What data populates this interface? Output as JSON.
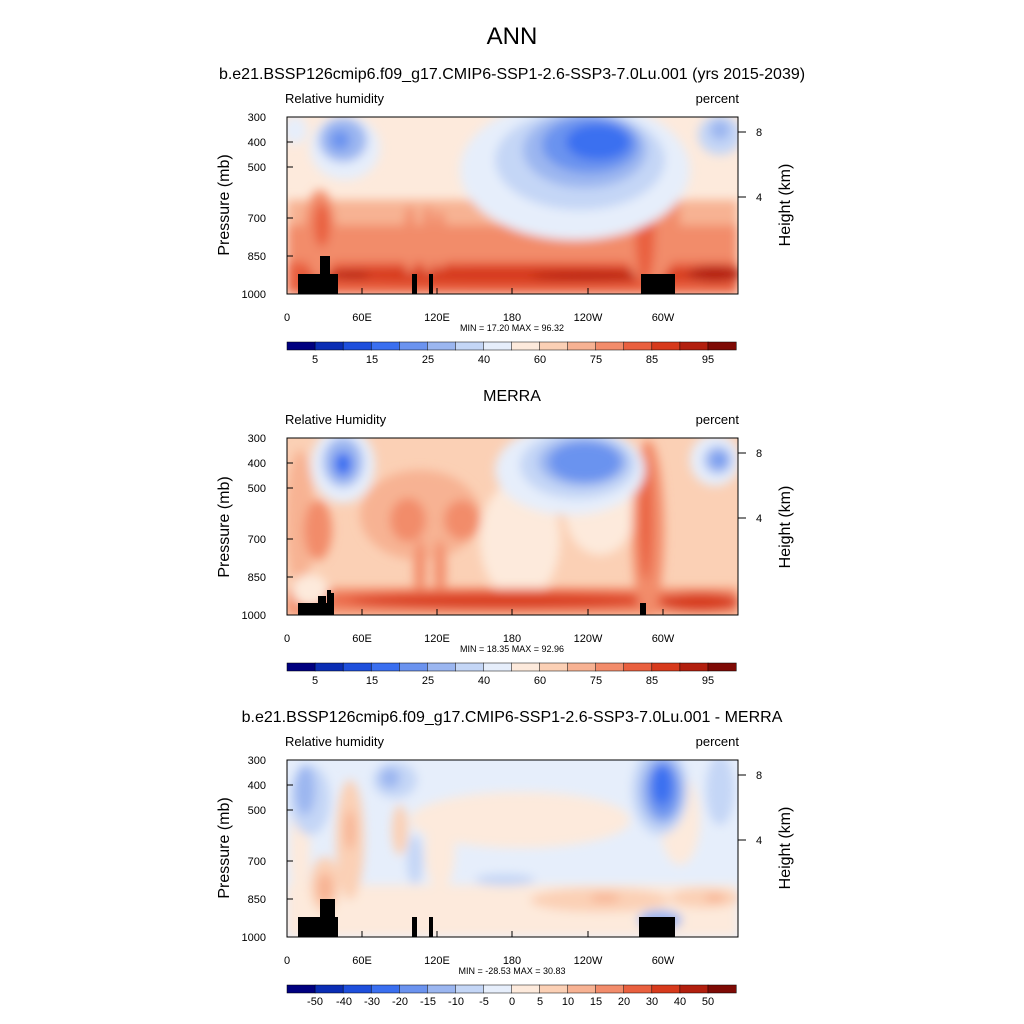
{
  "figure": {
    "title": "ANN",
    "colors_rh": [
      "#00007f",
      "#0a2db4",
      "#1e4fdc",
      "#3a6ff0",
      "#6b93ef",
      "#9bb6f0",
      "#c4d6f6",
      "#e6eefb",
      "#fdeadc",
      "#fbd0b5",
      "#f7b293",
      "#f28c6b",
      "#e9603f",
      "#d73a1c",
      "#b21f0e",
      "#7e0a05"
    ],
    "colors_diff": [
      "#00007f",
      "#0a2db4",
      "#1e4fdc",
      "#3a6ff0",
      "#6b93ef",
      "#9bb6f0",
      "#c4d6f6",
      "#e6eefb",
      "#fdeadc",
      "#fbd0b5",
      "#f7b293",
      "#f28c6b",
      "#e9603f",
      "#d73a1c",
      "#b21f0e",
      "#7e0a05"
    ]
  },
  "chart_data": [
    {
      "type": "heatmap",
      "title": "b.e21.BSSP126cmip6.f09_g17.CMIP6-SSP1-2.6-SSP3-7.0Lu.001 (yrs 2015-2039)",
      "left_label": "Relative humidity",
      "right_label": "percent",
      "ylabel": "Pressure (mb)",
      "y2label": "Height (km)",
      "yticks": [
        "300",
        "400",
        "500",
        "700",
        "850",
        "1000"
      ],
      "y2ticks": [
        "8",
        "4"
      ],
      "xticks": [
        "0",
        "60E",
        "120E",
        "180",
        "120W",
        "60W"
      ],
      "stats": "MIN =  17.20  MAX =  96.32",
      "colorbar_labels": [
        "5",
        "15",
        "25",
        "40",
        "60",
        "75",
        "85",
        "95"
      ],
      "ylim": [
        1000,
        300
      ],
      "xlim": [
        0,
        360
      ]
    },
    {
      "type": "heatmap",
      "title": "MERRA",
      "left_label": "Relative Humidity",
      "right_label": "percent",
      "ylabel": "Pressure (mb)",
      "y2label": "Height (km)",
      "yticks": [
        "300",
        "400",
        "500",
        "700",
        "850",
        "1000"
      ],
      "y2ticks": [
        "8",
        "4"
      ],
      "xticks": [
        "0",
        "60E",
        "120E",
        "180",
        "120W",
        "60W"
      ],
      "stats": "MIN =  18.35  MAX =  92.96",
      "colorbar_labels": [
        "5",
        "15",
        "25",
        "40",
        "60",
        "75",
        "85",
        "95"
      ],
      "ylim": [
        1000,
        300
      ],
      "xlim": [
        0,
        360
      ]
    },
    {
      "type": "heatmap",
      "title": "b.e21.BSSP126cmip6.f09_g17.CMIP6-SSP1-2.6-SSP3-7.0Lu.001 - MERRA",
      "left_label": "Relative humidity",
      "right_label": "percent",
      "ylabel": "Pressure (mb)",
      "y2label": "Height (km)",
      "yticks": [
        "300",
        "400",
        "500",
        "700",
        "850",
        "1000"
      ],
      "y2ticks": [
        "8",
        "4"
      ],
      "xticks": [
        "0",
        "60E",
        "120E",
        "180",
        "120W",
        "60W"
      ],
      "stats": "MIN = -28.53  MAX =  30.83",
      "colorbar_labels": [
        "-50",
        "-40",
        "-30",
        "-20",
        "-15",
        "-10",
        "-5",
        "0",
        "5",
        "10",
        "15",
        "20",
        "30",
        "40",
        "50"
      ],
      "ylim": [
        1000,
        300
      ],
      "xlim": [
        0,
        360
      ]
    }
  ]
}
